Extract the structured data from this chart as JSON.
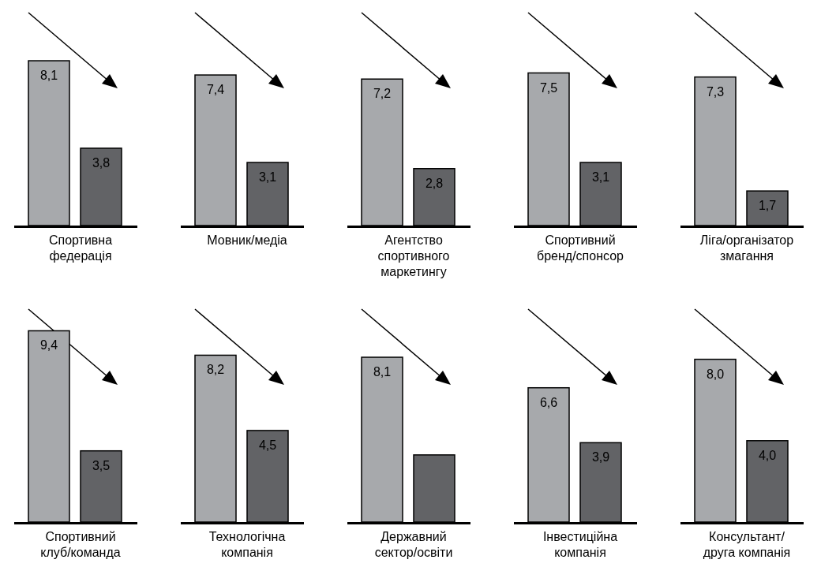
{
  "chart_data": [
    {
      "type": "bar",
      "categories": [
        null,
        null
      ],
      "values": [
        8.1,
        3.8
      ],
      "colors": [
        "#a7a9ac",
        "#626366"
      ],
      "value_labels": [
        "8,1",
        "3,8"
      ],
      "xlabel": "Спортивна федерація"
    },
    {
      "type": "bar",
      "categories": [
        null,
        null
      ],
      "values": [
        7.4,
        3.1
      ],
      "colors": [
        "#a7a9ac",
        "#626366"
      ],
      "value_labels": [
        "7,4",
        "3,1"
      ],
      "xlabel": "Мовник/медіа"
    },
    {
      "type": "bar",
      "categories": [
        null,
        null
      ],
      "values": [
        7.2,
        2.8
      ],
      "colors": [
        "#a7a9ac",
        "#626366"
      ],
      "value_labels": [
        "7,2",
        "2,8"
      ],
      "xlabel": "Агентство спортивного маркетингу"
    },
    {
      "type": "bar",
      "categories": [
        null,
        null
      ],
      "values": [
        7.5,
        3.1
      ],
      "colors": [
        "#a7a9ac",
        "#626366"
      ],
      "value_labels": [
        "7,5",
        "3,1"
      ],
      "xlabel": "Спортивний бренд/спонсор"
    },
    {
      "type": "bar",
      "categories": [
        null,
        null
      ],
      "values": [
        7.3,
        1.7
      ],
      "colors": [
        "#a7a9ac",
        "#626366"
      ],
      "value_labels": [
        "7,3",
        "1,7"
      ],
      "xlabel": "Ліга/організатор змагання"
    },
    {
      "type": "bar",
      "categories": [
        null,
        null
      ],
      "values": [
        9.4,
        3.5
      ],
      "colors": [
        "#a7a9ac",
        "#626366"
      ],
      "value_labels": [
        "9,4",
        "3,5"
      ],
      "xlabel": "Спортивний клуб/команда"
    },
    {
      "type": "bar",
      "categories": [
        null,
        null
      ],
      "values": [
        8.2,
        4.5
      ],
      "colors": [
        "#a7a9ac",
        "#626366"
      ],
      "value_labels": [
        "8,2",
        "4,5"
      ],
      "xlabel": "Технологічна компанія"
    },
    {
      "type": "bar",
      "categories": [
        null,
        null
      ],
      "values": [
        8.1,
        3.3
      ],
      "colors": [
        "#a7a9ac",
        "#626366"
      ],
      "value_labels": [
        "8,1",
        null
      ],
      "xlabel": "Державний сектор/освіти"
    },
    {
      "type": "bar",
      "categories": [
        null,
        null
      ],
      "values": [
        6.6,
        3.9
      ],
      "colors": [
        "#a7a9ac",
        "#626366"
      ],
      "value_labels": [
        "6,6",
        "3,9"
      ],
      "xlabel": "Інвестиційна компанія"
    },
    {
      "type": "bar",
      "categories": [
        null,
        null
      ],
      "values": [
        8.0,
        4.0
      ],
      "colors": [
        "#a7a9ac",
        "#626366"
      ],
      "value_labels": [
        "8,0",
        "4,0"
      ],
      "xlabel": "Консультант/ друга компанія"
    }
  ]
}
